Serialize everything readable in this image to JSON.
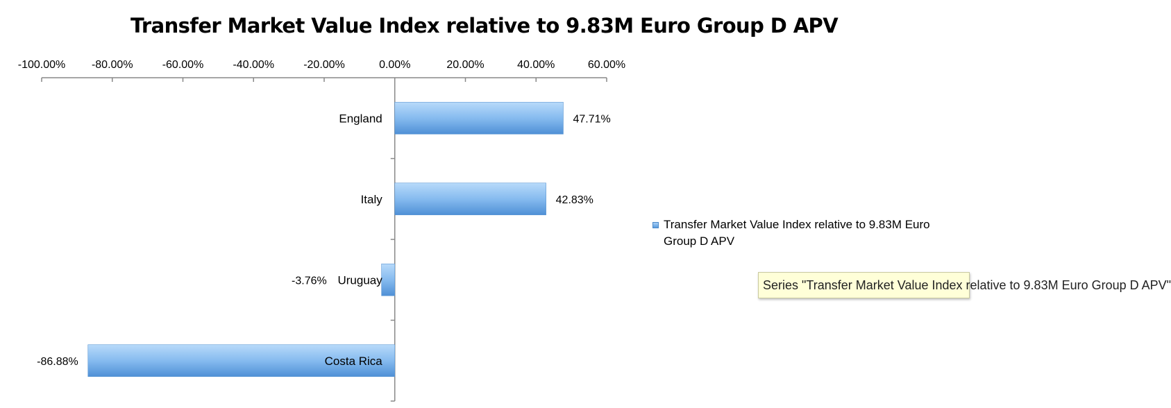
{
  "chart_data": {
    "type": "bar",
    "orientation": "horizontal",
    "title": "Transfer Market Value Index relative to 9.83M Euro Group D APV",
    "categories": [
      "England",
      "Italy",
      "Uruguay",
      "Costa Rica"
    ],
    "series": [
      {
        "name": "Transfer Market Value Index relative to 9.83M Euro Group D APV",
        "values": [
          47.71,
          42.83,
          -3.76,
          -86.88
        ]
      }
    ],
    "data_labels": [
      "47.71%",
      "42.83%",
      "-3.76%",
      "-86.88%"
    ],
    "xlim": [
      -100,
      60
    ],
    "x_ticks": [
      -100,
      -80,
      -60,
      -40,
      -20,
      0,
      20,
      40,
      60
    ],
    "x_tick_labels": [
      "-100.00%",
      "-80.00%",
      "-60.00%",
      "-40.00%",
      "-20.00%",
      "0.00%",
      "20.00%",
      "40.00%",
      "60.00%"
    ],
    "x_axis_position": "top",
    "grid": false,
    "legend_position": "right",
    "bar_color": "#6fa8e4"
  },
  "tooltip": {
    "text": "Series \"Transfer Market Value Index relative to 9.83M Euro Group D APV\""
  }
}
